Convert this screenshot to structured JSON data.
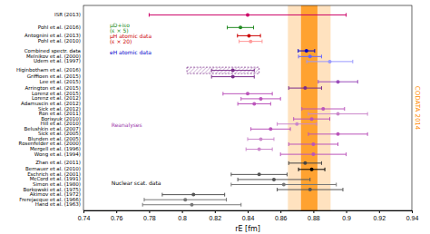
{
  "chart_data": {
    "type": "forest",
    "orientation": "horizontal",
    "x_label": "rE [fm]",
    "xlim": [
      0.74,
      0.94
    ],
    "xticks": [
      0.74,
      0.76,
      0.78,
      0.8,
      0.82,
      0.84,
      0.86,
      0.88,
      0.9,
      0.92,
      0.94
    ],
    "ylim": [
      2.0,
      34.5
    ],
    "tick_labels": "x",
    "grid": false,
    "reference": {
      "label": "CODATA 2014",
      "value": 0.8775,
      "inner_error": 0.005,
      "outer_error": 0.013,
      "color": "#FF8C00"
    },
    "categories": [
      "ISR (2013)",
      "Pohl et al. (2016)",
      "Antognini et al. (2013)",
      "Pohl et al. (2010)",
      "Combined spectr. data",
      "Melnikov et al. (2000)",
      "Udem et al. (1997)",
      "Higinbotham et al. (2016)",
      "Griffioen et al. (2015)",
      "Lee et al. (2015)",
      "Arrington et al. (2015)",
      "Lorenz et al. (2015)",
      "Lorenz et al. (2012)",
      "Adamuscin et al. (2012)",
      "Sick et al. (2012)",
      "Ron et al. (2011)",
      "Borisyuk (2010)",
      "Hill et al. (2010)",
      "Belushkin et al. (2007)",
      "Sick et al. (2005)",
      "Blunden et al. (2005)",
      "Rosenfelder et al. (2000)",
      "Mergell et al. (1996)",
      "Wong et al. (1994)",
      "Zhan et al. (2011)",
      "Bernauer et al. (2010)",
      "Eschrich et al. (2001)",
      "McCord et al. (1991)",
      "Simon et al. (1980)",
      "Borkowski et al. (1975)",
      "Akimov et al. (1972)",
      "Frerejacque et al. (1966)",
      "Hand et al. (1963)"
    ],
    "y": [
      33,
      31,
      29.7,
      28.8,
      27.3,
      26.4,
      25.6,
      24.2,
      23.2,
      22.4,
      21.4,
      20.5,
      19.7,
      18.9,
      18.1,
      17.3,
      16.5,
      15.7,
      14.9,
      14.1,
      13.3,
      12.5,
      11.7,
      10.9,
      9.5,
      8.5,
      7.7,
      6.9,
      6.1,
      5.3,
      4.5,
      3.7,
      2.9
    ],
    "values": [
      0.84,
      0.8356,
      0.8408,
      0.8418,
      0.8758,
      0.878,
      0.89,
      0.831,
      0.831,
      0.895,
      0.875,
      0.84,
      0.848,
      0.844,
      0.886,
      0.895,
      0.879,
      0.87,
      0.854,
      0.895,
      0.848,
      0.88,
      0.847,
      0.88,
      0.875,
      0.879,
      0.847,
      0.856,
      0.862,
      0.878,
      0.807,
      0.802,
      0.806
    ],
    "error_low": [
      0.06,
      0.008,
      0.007,
      0.007,
      0.005,
      0.007,
      0.014,
      0.013,
      0.013,
      0.012,
      0.01,
      0.015,
      0.012,
      0.01,
      0.013,
      0.018,
      0.011,
      0.012,
      0.012,
      0.018,
      0.008,
      0.015,
      0.008,
      0.02,
      0.01,
      0.008,
      0.017,
      0.022,
      0.032,
      0.02,
      0.019,
      0.025,
      0.03
    ],
    "error_high": [
      0.06,
      0.008,
      0.007,
      0.007,
      0.005,
      0.007,
      0.014,
      0.013,
      0.013,
      0.012,
      0.01,
      0.015,
      0.012,
      0.01,
      0.013,
      0.018,
      0.011,
      0.012,
      0.012,
      0.018,
      0.008,
      0.015,
      0.008,
      0.02,
      0.01,
      0.008,
      0.017,
      0.022,
      0.032,
      0.02,
      0.019,
      0.025,
      0.03
    ],
    "ranges": [
      null,
      null,
      null,
      null,
      null,
      null,
      null,
      [
        0.803,
        0.847
      ],
      null,
      null,
      null,
      null,
      null,
      null,
      null,
      null,
      null,
      null,
      null,
      null,
      null,
      null,
      null,
      null,
      null,
      null,
      null,
      null,
      null,
      null,
      null,
      null,
      null
    ],
    "colors": [
      "#CC0066",
      "#228B22",
      "#CC0000",
      "#FF9999",
      "#0000CC",
      "#6666FF",
      "#9999FF",
      "#7B2D8B",
      "#7B2D8B",
      "#9B4DBB",
      "#7B2D8B",
      "#BB55BB",
      "#BB55BB",
      "#BB55BB",
      "#BB55BB",
      "#CC88CC",
      "#BB55BB",
      "#CC88CC",
      "#BB55BB",
      "#BB55BB",
      "#CC88CC",
      "#BB55BB",
      "#CC88CC",
      "#BB55BB",
      "#444444",
      "#000000",
      "#555555",
      "#555555",
      "#777777",
      "#555555",
      "#555555",
      "#777777",
      "#777777"
    ],
    "annotations": [
      {
        "text": "μD+iso\n(ε × 5)",
        "x": 0.756,
        "y": 30.9,
        "color": "#228B22"
      },
      {
        "text": "μH atomic data\n(ε × 20)",
        "x": 0.756,
        "y": 29.15,
        "color": "#CC0000"
      },
      {
        "text": "eH atomic data",
        "x": 0.756,
        "y": 27.0,
        "color": "#0000CC"
      },
      {
        "text": "Reanalyses",
        "x": 0.757,
        "y": 15.5,
        "color": "#9933AA"
      },
      {
        "text": "Nuclear scat. data",
        "x": 0.757,
        "y": 6.3,
        "color": "#000000"
      }
    ]
  }
}
